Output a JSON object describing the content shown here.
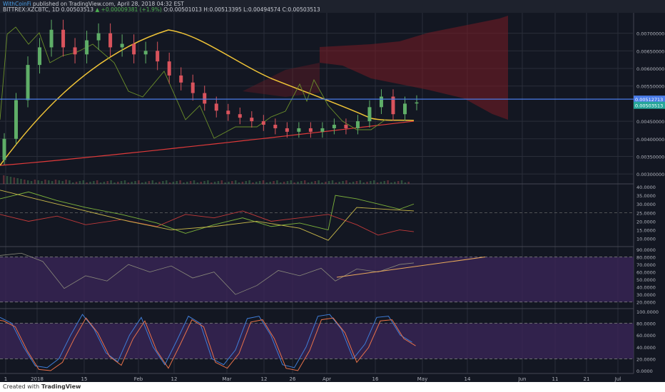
{
  "header": {
    "author": "WithCoinFi",
    "published": "published on TradingView.com, April 28, 2018 04:32 EST",
    "symbol": "BITTREX:XZCBTC, 1D",
    "price": "0.00503513",
    "change_arrow": "▲",
    "change": "+0.00009381 (+1.9%)",
    "ohlc_o": "O:0.00501013",
    "ohlc_h": "H:0.00513395",
    "ohlc_l": "L:0.00494574",
    "ohlc_c": "C:0.00503513"
  },
  "footer": {
    "created_with": "Created with",
    "brand": "TradingView"
  },
  "colors": {
    "background": "#131722",
    "up_candle": "#5fae68",
    "down_candle": "#d9535c",
    "ma50": "#f0c437",
    "ma200": "#e03a3a",
    "lagging_span": "#6b8f2a",
    "horizontal_line": "#4a7ce8",
    "cloud": "#7a1b24",
    "rsi_fill": "#3a2558",
    "stoch_k": "#3f7dd8",
    "stoch_d": "#e9724a",
    "dmi_plus": "#7db33b",
    "dmi_minus": "#c23a3a",
    "adx": "#c9b84a"
  },
  "price_axis": {
    "ticks": [
      "0.00700000",
      "0.00650000",
      "0.00600000",
      "0.00550000",
      "0.00450000",
      "0.00400000",
      "0.00350000",
      "0.00300000"
    ],
    "label_horizontal_line": "0.00512713",
    "label_last_price": "0.00503513"
  },
  "dmi_axis": {
    "ticks": [
      "40.0000",
      "35.0000",
      "30.0000",
      "25.0000",
      "20.0000",
      "15.0000",
      "10.0000"
    ]
  },
  "rsi_axis": {
    "ticks": [
      "90.0000",
      "80.0000",
      "70.0000",
      "60.0000",
      "50.0000",
      "40.0000",
      "30.0000",
      "20.0000"
    ]
  },
  "stoch_axis": {
    "ticks": [
      "100.0000",
      "80.0000",
      "60.0000",
      "40.0000",
      "20.0000",
      "0.0000"
    ]
  },
  "time_axis": {
    "labels": [
      "1",
      "2018",
      "15",
      "Feb",
      "12",
      "Mar",
      "12",
      "26",
      "Apr",
      "16",
      "May",
      "14",
      "Jun",
      "11",
      "21",
      "Jul"
    ]
  },
  "chart_data": {
    "type": "candlestick",
    "title": "",
    "symbol": "XZCBTC",
    "exchange": "BITTREX",
    "interval": "1D",
    "price_ylim": [
      0.0028,
      0.0075
    ],
    "candles_approx": [
      {
        "date": "2018-01-01",
        "o": 0.0034,
        "h": 0.0038,
        "l": 0.0032,
        "c": 0.0036
      },
      {
        "date": "2018-01-02",
        "o": 0.0036,
        "h": 0.0045,
        "l": 0.0035,
        "c": 0.0043
      },
      {
        "date": "2018-01-04",
        "o": 0.0043,
        "h": 0.0056,
        "l": 0.0042,
        "c": 0.0054
      },
      {
        "date": "2018-01-06",
        "o": 0.0054,
        "h": 0.0064,
        "l": 0.0052,
        "c": 0.0062
      },
      {
        "date": "2018-01-09",
        "o": 0.0062,
        "h": 0.007,
        "l": 0.0058,
        "c": 0.0066
      },
      {
        "date": "2018-01-12",
        "o": 0.0066,
        "h": 0.0075,
        "l": 0.0062,
        "c": 0.007
      },
      {
        "date": "2018-01-15",
        "o": 0.007,
        "h": 0.0075,
        "l": 0.0063,
        "c": 0.0066
      },
      {
        "date": "2018-01-20",
        "o": 0.0066,
        "h": 0.007,
        "l": 0.0062,
        "c": 0.0065
      },
      {
        "date": "2018-01-28",
        "o": 0.0066,
        "h": 0.0072,
        "l": 0.0063,
        "c": 0.0069
      },
      {
        "date": "2018-02-04",
        "o": 0.0068,
        "h": 0.007,
        "l": 0.0062,
        "c": 0.0064
      },
      {
        "date": "2018-02-12",
        "o": 0.0066,
        "h": 0.0068,
        "l": 0.006,
        "c": 0.0062
      },
      {
        "date": "2018-02-20",
        "o": 0.006,
        "h": 0.0062,
        "l": 0.0053,
        "c": 0.0055
      },
      {
        "date": "2018-03-01",
        "o": 0.0053,
        "h": 0.0055,
        "l": 0.0047,
        "c": 0.0048
      },
      {
        "date": "2018-03-12",
        "o": 0.0048,
        "h": 0.005,
        "l": 0.0045,
        "c": 0.0046
      },
      {
        "date": "2018-03-26",
        "o": 0.0044,
        "h": 0.0047,
        "l": 0.0041,
        "c": 0.0043
      },
      {
        "date": "2018-04-05",
        "o": 0.0042,
        "h": 0.0044,
        "l": 0.004,
        "c": 0.0043
      },
      {
        "date": "2018-04-16",
        "o": 0.0042,
        "h": 0.0045,
        "l": 0.0039,
        "c": 0.0044
      },
      {
        "date": "2018-04-19",
        "o": 0.0044,
        "h": 0.005,
        "l": 0.0043,
        "c": 0.0049
      },
      {
        "date": "2018-04-22",
        "o": 0.0049,
        "h": 0.0053,
        "l": 0.0047,
        "c": 0.0052
      },
      {
        "date": "2018-04-25",
        "o": 0.0051,
        "h": 0.0052,
        "l": 0.0046,
        "c": 0.0047
      },
      {
        "date": "2018-04-28",
        "o": 0.0050101,
        "h": 0.00513395,
        "l": 0.00494574,
        "c": 0.00503513
      }
    ],
    "horizontal_line": 0.00512713,
    "last_price": 0.00503513,
    "indicators": [
      "MA 50",
      "MA 200",
      "Ichimoku Cloud",
      "Volume",
      "DMI/ADX",
      "RSI",
      "Stochastic RSI"
    ],
    "dmi_ylim": [
      5,
      40
    ],
    "rsi_ylim": [
      15,
      90
    ],
    "rsi_bands": [
      80,
      20
    ],
    "stoch_ylim": [
      0,
      100
    ],
    "stoch_bands": [
      80,
      20
    ]
  }
}
